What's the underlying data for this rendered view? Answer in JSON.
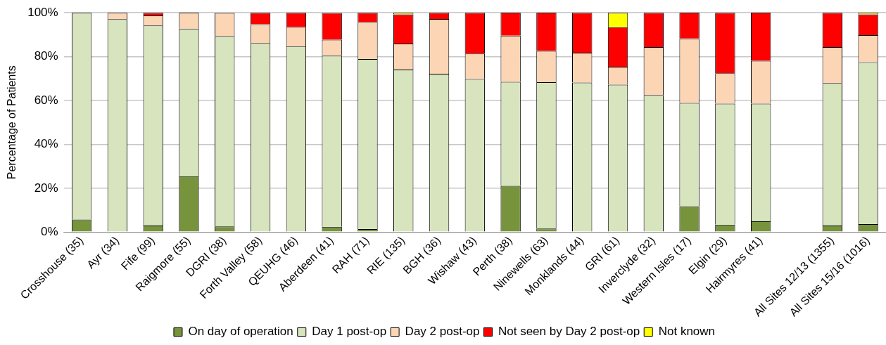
{
  "chart_data": {
    "type": "bar",
    "stacked": true,
    "ylabel": "Percentage of Patients",
    "categories": [
      "Crosshouse (35)",
      "Ayr (34)",
      "Fife (99)",
      "Raigmore (55)",
      "DGRI (38)",
      "Forth Valley (58)",
      "QEUHG (46)",
      "Aberdeen (41)",
      "RAH (71)",
      "RIE (135)",
      "BGH (36)",
      "Wishaw (43)",
      "Perth (38)",
      "Ninewells (63)",
      "Monklands (44)",
      "GRI (61)",
      "Inverclyde (32)",
      "Western Isles (17)",
      "Elgin (29)",
      "Hairmyres (41)",
      null,
      "All Sites 12/13 (1355)",
      "All Sites 15/16 (1016)"
    ],
    "series": [
      {
        "name": "On day of operation",
        "color": "#77933c",
        "values": [
          5.7,
          0,
          3.0,
          25.5,
          2.6,
          0,
          0,
          2.4,
          1.4,
          0,
          0,
          0,
          21.1,
          1.6,
          0,
          0,
          0,
          11.8,
          3.4,
          4.9,
          null,
          3.0,
          3.6
        ]
      },
      {
        "name": "Day 1 post-op",
        "color": "#d7e4bd",
        "values": [
          94.3,
          97.1,
          91.2,
          67.3,
          86.8,
          86.2,
          84.8,
          78.0,
          77.5,
          74.1,
          72.2,
          69.8,
          47.4,
          66.7,
          68.2,
          67.2,
          62.5,
          47.1,
          55.2,
          53.7,
          null,
          64.9,
          73.9
        ]
      },
      {
        "name": "Day 2 post-op",
        "color": "#fcd5b5",
        "values": [
          0,
          2.9,
          4.6,
          7.3,
          10.5,
          8.6,
          8.7,
          7.3,
          16.9,
          11.9,
          25.0,
          11.6,
          21.1,
          14.3,
          13.6,
          8.2,
          21.9,
          29.4,
          13.8,
          19.5,
          null,
          16.5,
          12.3
        ]
      },
      {
        "name": "Not seen by Day 2 post-op",
        "color": "#ff0000",
        "values": [
          0,
          0,
          1.2,
          0,
          0,
          5.2,
          6.5,
          12.2,
          4.2,
          13.3,
          2.8,
          18.6,
          10.5,
          17.5,
          18.2,
          18.0,
          15.6,
          11.8,
          27.6,
          22.0,
          null,
          15.6,
          9.5
        ]
      },
      {
        "name": "Not known",
        "color": "#ffff00",
        "values": [
          0,
          0,
          0,
          0,
          0,
          0,
          0,
          0,
          0,
          0.7,
          0,
          0,
          0,
          0,
          0,
          6.6,
          0,
          0,
          0,
          0,
          null,
          0,
          0.7
        ]
      }
    ],
    "ylim": [
      0,
      100
    ],
    "yticks": [
      {
        "value": 0,
        "label": "0%"
      },
      {
        "value": 20,
        "label": "20%"
      },
      {
        "value": 40,
        "label": "40%"
      },
      {
        "value": 60,
        "label": "60%"
      },
      {
        "value": 80,
        "label": "80%"
      },
      {
        "value": 100,
        "label": "100%"
      }
    ],
    "grid": "y",
    "legend": "bottom"
  }
}
